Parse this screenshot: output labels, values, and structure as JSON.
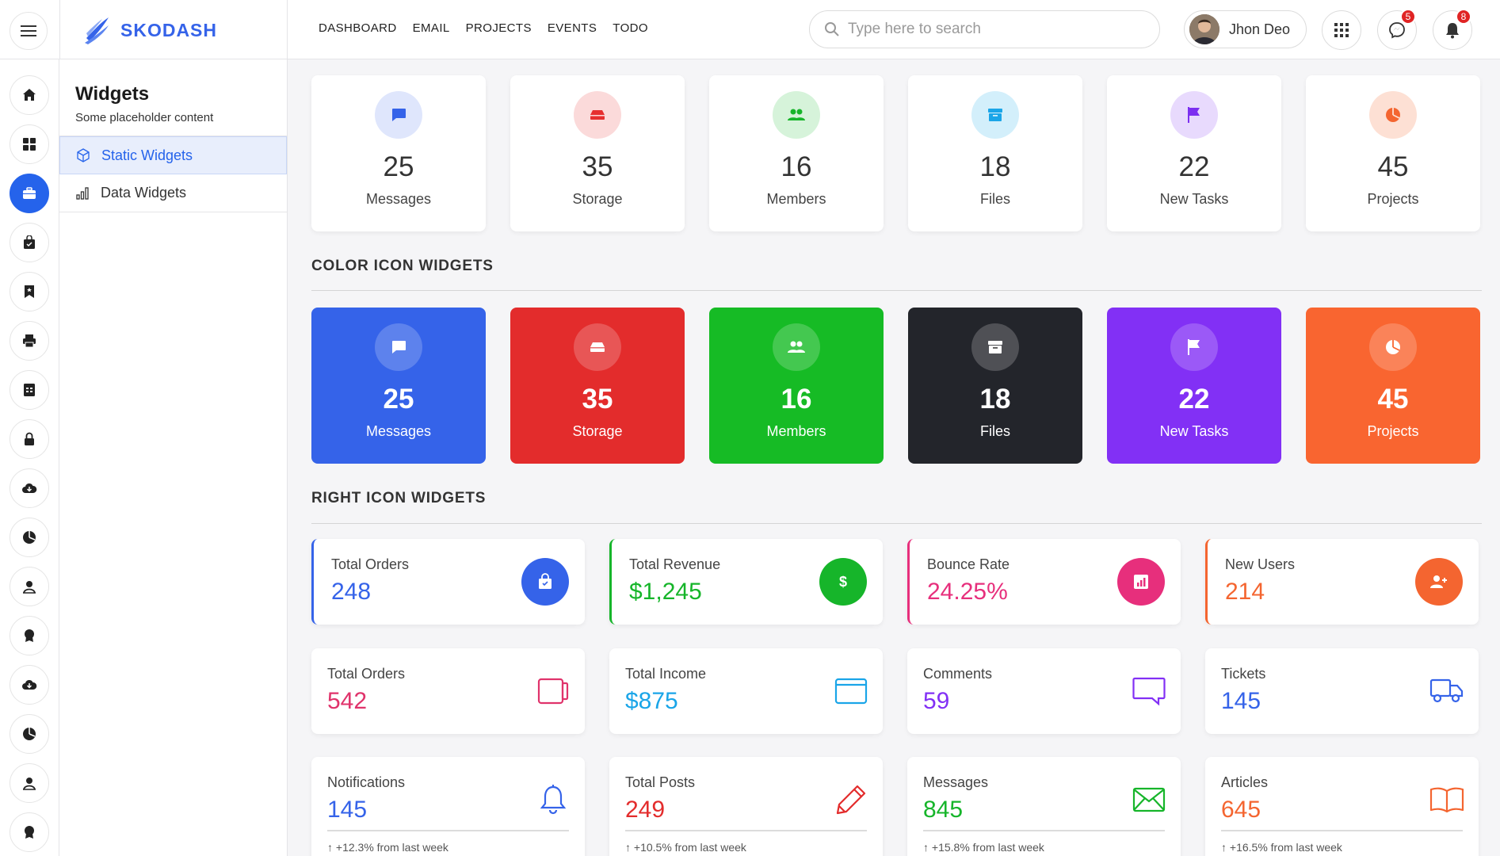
{
  "brand": {
    "name": "SKODASH"
  },
  "topnav": [
    "DASHBOARD",
    "EMAIL",
    "PROJECTS",
    "EVENTS",
    "TODO"
  ],
  "search": {
    "placeholder": "Type here to search"
  },
  "user": {
    "name": "Jhon Deo"
  },
  "header": {
    "messenger_badge": "5",
    "notifications_badge": "8"
  },
  "sidebar": {
    "title": "Widgets",
    "caption": "Some placeholder content",
    "items": [
      {
        "label": "Static Widgets",
        "icon": "cube-icon",
        "active": true
      },
      {
        "label": "Data Widgets",
        "icon": "bar-chart-icon",
        "active": false
      }
    ]
  },
  "rail_icons": [
    "home-icon",
    "grid-icon",
    "briefcase-icon",
    "bag-check-icon",
    "bookmark-icon",
    "printer-icon",
    "table-icon",
    "lock-icon",
    "cloud-download-icon",
    "pie-chart-icon",
    "person-icon",
    "award-icon",
    "cloud-download-icon",
    "pie-chart-icon",
    "person-icon",
    "award-icon"
  ],
  "stats": [
    {
      "value": "25",
      "label": "Messages",
      "icon": "chat-icon",
      "color": "#3563e9",
      "tint": "#dfe6fc"
    },
    {
      "value": "35",
      "label": "Storage",
      "icon": "hdd-icon",
      "color": "#e62f2f",
      "tint": "#fbdada"
    },
    {
      "value": "16",
      "label": "Members",
      "icon": "people-icon",
      "color": "#17b52a",
      "tint": "#d6f3da"
    },
    {
      "value": "18",
      "label": "Files",
      "icon": "archive-icon",
      "color": "#1aa5e8",
      "tint": "#d3effb"
    },
    {
      "value": "22",
      "label": "New Tasks",
      "icon": "flag-icon",
      "color": "#7c2ff0",
      "tint": "#e8dafd"
    },
    {
      "value": "45",
      "label": "Projects",
      "icon": "pie-chart-icon",
      "color": "#f46530",
      "tint": "#fde0d4"
    }
  ],
  "color_section": {
    "title": "COLOR ICON WIDGETS"
  },
  "color_stats": [
    {
      "value": "25",
      "label": "Messages",
      "icon": "chat-icon",
      "bg": "#3563e9"
    },
    {
      "value": "35",
      "label": "Storage",
      "icon": "hdd-icon",
      "bg": "#e32c2c"
    },
    {
      "value": "16",
      "label": "Members",
      "icon": "people-icon",
      "bg": "#16bb25"
    },
    {
      "value": "18",
      "label": "Files",
      "icon": "archive-icon",
      "bg": "#23252b"
    },
    {
      "value": "22",
      "label": "New Tasks",
      "icon": "flag-icon",
      "bg": "#8230f5"
    },
    {
      "value": "45",
      "label": "Projects",
      "icon": "pie-chart-icon",
      "bg": "#f96530"
    }
  ],
  "right_section": {
    "title": "RIGHT ICON WIDGETS"
  },
  "right_row1": [
    {
      "title": "Total Orders",
      "value": "248",
      "color": "#3563e9",
      "icon": "shopping-bag-icon"
    },
    {
      "title": "Total Revenue",
      "value": "$1,245",
      "color": "#16b52a",
      "icon": "dollar-icon"
    },
    {
      "title": "Bounce Rate",
      "value": "24.25%",
      "color": "#e72f7c",
      "icon": "bar-chart-icon"
    },
    {
      "title": "New Users",
      "value": "214",
      "color": "#f46530",
      "icon": "person-add-icon"
    }
  ],
  "right_row2": [
    {
      "title": "Total Orders",
      "value": "542",
      "color": "#e0336b",
      "icon": "wallet-icon"
    },
    {
      "title": "Total Income",
      "value": "$875",
      "color": "#1aa5e8",
      "icon": "credit-card-icon"
    },
    {
      "title": "Comments",
      "value": "59",
      "color": "#8230f5",
      "icon": "comment-icon"
    },
    {
      "title": "Tickets",
      "value": "145",
      "color": "#3563e9",
      "icon": "truck-icon"
    }
  ],
  "right_row3": [
    {
      "title": "Notifications",
      "value": "145",
      "color": "#3563e9",
      "icon": "bell-icon",
      "footer": "↑ +12.3% from last week"
    },
    {
      "title": "Total Posts",
      "value": "249",
      "color": "#e32c2c",
      "icon": "pencil-icon",
      "footer": "↑ +10.5% from last week"
    },
    {
      "title": "Messages",
      "value": "845",
      "color": "#16b52a",
      "icon": "envelope-icon",
      "footer": "↑ +15.8% from last week"
    },
    {
      "title": "Articles",
      "value": "645",
      "color": "#f46530",
      "icon": "book-icon",
      "footer": "↑ +16.5% from last week"
    }
  ]
}
